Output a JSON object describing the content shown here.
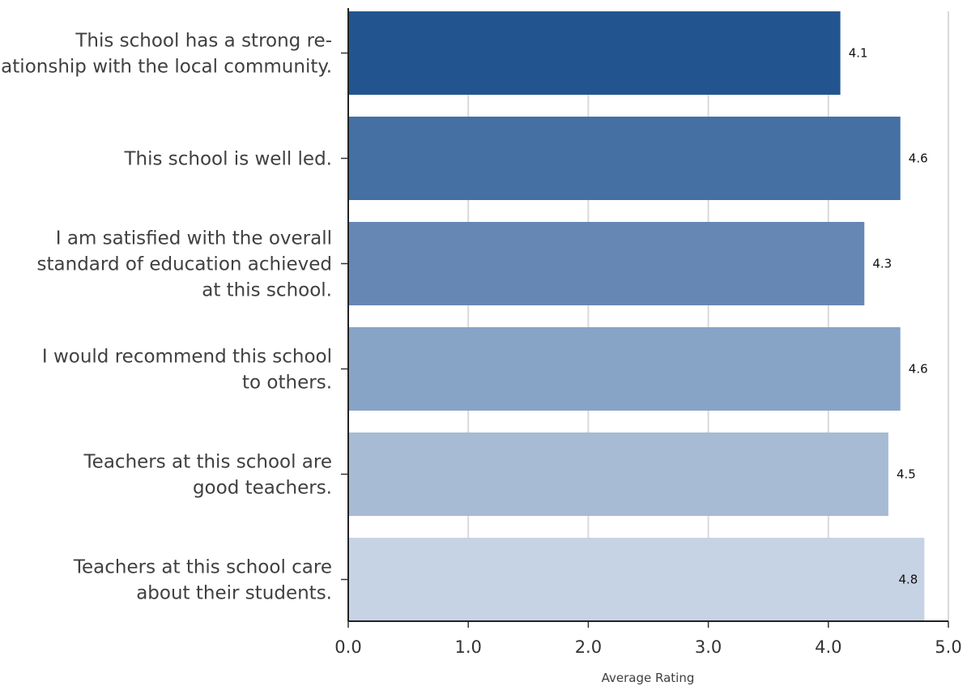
{
  "chart_data": {
    "type": "bar",
    "orientation": "horizontal",
    "categories": [
      [
        "This school has a strong re-",
        "lationship with the local community."
      ],
      [
        "This school is well led."
      ],
      [
        "I am satisfied with the overall",
        "standard of education achieved",
        "at this school."
      ],
      [
        "I would recommend this school",
        "to others."
      ],
      [
        "Teachers at this school are",
        "good teachers."
      ],
      [
        "Teachers at this school care",
        "about their students."
      ]
    ],
    "values": [
      4.1,
      4.6,
      4.3,
      4.6,
      4.5,
      4.8
    ],
    "data_labels": [
      "4.1",
      "4.6",
      "4.3",
      "4.6",
      "4.5",
      "4.8"
    ],
    "bar_colors": [
      "#22558f",
      "#4470a3",
      "#6687b4",
      "#87a3c6",
      "#a7bbd4",
      "#c6d3e4"
    ],
    "xlabel": "Average Rating",
    "ylabel": "",
    "xlim": [
      0,
      5
    ],
    "x_ticks": [
      0,
      1,
      2,
      3,
      4,
      5
    ],
    "x_tick_labels": [
      "0.0",
      "1.0",
      "2.0",
      "3.0",
      "4.0",
      "5.0"
    ],
    "grid": "vertical",
    "legend": "none"
  }
}
